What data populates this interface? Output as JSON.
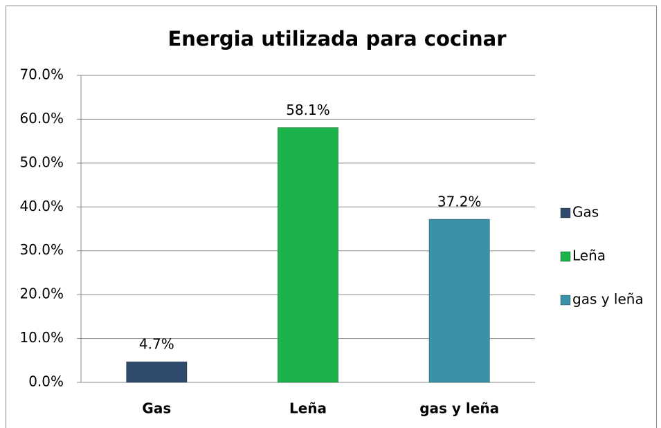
{
  "chart_data": {
    "type": "bar",
    "title": "Energia utilizada para cocinar",
    "categories": [
      "Gas",
      "Leña",
      "gas y leña"
    ],
    "values": [
      4.7,
      58.1,
      37.2
    ],
    "value_labels": [
      "4.7%",
      "58.1%",
      "37.2%"
    ],
    "colors": [
      "#2e4a6d",
      "#1db34b",
      "#3a92a7"
    ],
    "ylim": [
      0,
      70
    ],
    "yticks": [
      {
        "value": 0,
        "label": "0.0%"
      },
      {
        "value": 10,
        "label": "10.0%"
      },
      {
        "value": 20,
        "label": "20.0%"
      },
      {
        "value": 30,
        "label": "30.0%"
      },
      {
        "value": 40,
        "label": "40.0%"
      },
      {
        "value": 50,
        "label": "50.0%"
      },
      {
        "value": 60,
        "label": "60.0%"
      },
      {
        "value": 70,
        "label": "70.0%"
      }
    ],
    "grid": true,
    "legend": "right"
  }
}
